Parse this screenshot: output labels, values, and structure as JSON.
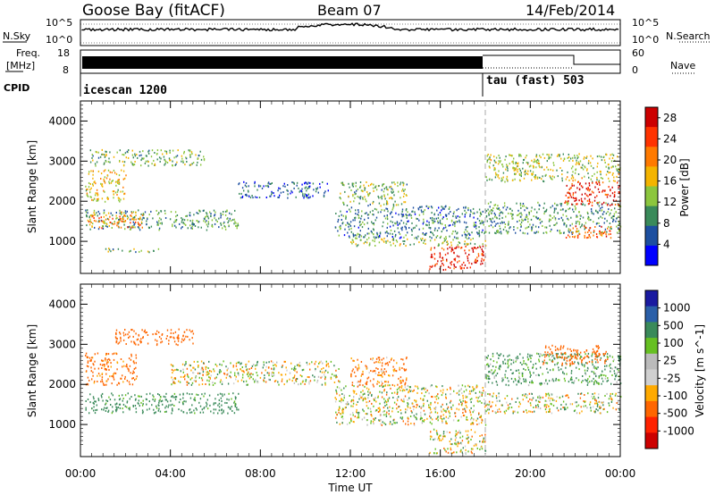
{
  "header": {
    "station": "Goose Bay (fitACF)",
    "beam": "Beam 07",
    "date": "14/Feb/2014"
  },
  "left_labels": {
    "nsky": "N.Sky",
    "freq_line1": "Freq.",
    "freq_line2": "[MHz]",
    "cpid": "CPID"
  },
  "right_labels": {
    "nsearch": "N.Search",
    "nave": "Nave"
  },
  "noise_panel": {
    "ticks_left": [
      "10^5",
      "10^0"
    ],
    "ticks_right": [
      "10^5",
      "10^0"
    ]
  },
  "freq_panel": {
    "ticks_left": [
      "18",
      "8"
    ],
    "ticks_right": [
      "60",
      "0"
    ]
  },
  "cpid_panel": {
    "mode1": "icescan 1200",
    "mode2": "tau (fast) 503"
  },
  "colors": {
    "power_scale": [
      "#0000ff",
      "#1d4fa0",
      "#3a8a5a",
      "#8cc63e",
      "#f4b400",
      "#ff7a00",
      "#ff3300",
      "#cc0000"
    ],
    "velocity_scale": [
      "#1a1aa0",
      "#2a5fa8",
      "#3a8a5a",
      "#66c022",
      "#bbbbbb",
      "#d0d0d0",
      "#ffaa00",
      "#ff6600",
      "#ff2200",
      "#cc0000"
    ],
    "background": "#ffffff"
  },
  "chart_data": [
    {
      "type": "heatmap",
      "panel": "power",
      "ylabel": "Slant Range [km]",
      "yticks": [
        "1000",
        "2000",
        "3000",
        "4000"
      ],
      "ylim": [
        200,
        4500
      ],
      "xticks": [
        "00:00",
        "04:00",
        "08:00",
        "12:00",
        "16:00",
        "20:00",
        "00:00"
      ],
      "xlim_hours": [
        0,
        24
      ],
      "colorbar_label": "Power [dB]",
      "colorbar_ticks": [
        "4",
        "8",
        "12",
        "16",
        "20",
        "24",
        "28"
      ],
      "zlim": [
        0,
        30
      ],
      "regions": [
        {
          "t0": 0.2,
          "t1": 7.0,
          "r0": 1300,
          "r1": 1800,
          "value": 10
        },
        {
          "t0": 0.3,
          "t1": 2.8,
          "r0": 1350,
          "r1": 1750,
          "value": 20
        },
        {
          "t0": 0.2,
          "t1": 2.0,
          "r0": 2000,
          "r1": 2800,
          "value": 16
        },
        {
          "t0": 0.4,
          "t1": 5.5,
          "r0": 2900,
          "r1": 3300,
          "value": 12
        },
        {
          "t0": 1.0,
          "t1": 3.5,
          "r0": 750,
          "r1": 850,
          "value": 12
        },
        {
          "t0": 7.0,
          "t1": 11.0,
          "r0": 2100,
          "r1": 2500,
          "value": 6
        },
        {
          "t0": 11.3,
          "t1": 18.0,
          "r0": 1100,
          "r1": 1900,
          "value": 8
        },
        {
          "t0": 11.5,
          "t1": 14.5,
          "r0": 1900,
          "r1": 2500,
          "value": 12
        },
        {
          "t0": 12.0,
          "t1": 18.0,
          "r0": 900,
          "r1": 1100,
          "value": 14
        },
        {
          "t0": 15.5,
          "t1": 18.0,
          "r0": 300,
          "r1": 900,
          "value": 26
        },
        {
          "t0": 18.0,
          "t1": 24.0,
          "r0": 1200,
          "r1": 2000,
          "value": 10
        },
        {
          "t0": 18.0,
          "t1": 24.0,
          "r0": 2500,
          "r1": 3200,
          "value": 14
        },
        {
          "t0": 21.5,
          "t1": 24.0,
          "r0": 1900,
          "r1": 2500,
          "value": 26
        },
        {
          "t0": 21.5,
          "t1": 24.0,
          "r0": 1100,
          "r1": 1400,
          "value": 22
        }
      ]
    },
    {
      "type": "heatmap",
      "panel": "velocity",
      "ylabel": "Slant Range [km]",
      "yticks": [
        "1000",
        "2000",
        "3000",
        "4000"
      ],
      "ylim": [
        200,
        4500
      ],
      "xticks": [
        "00:00",
        "04:00",
        "08:00",
        "12:00",
        "16:00",
        "20:00",
        "00:00"
      ],
      "xlabel": "Time UT",
      "xlim_hours": [
        0,
        24
      ],
      "colorbar_label": "Velocity [m s^-1]",
      "colorbar_ticks": [
        "1000",
        "500",
        "100",
        "25",
        "-25",
        "-100",
        "-500",
        "-1000"
      ],
      "regions": [
        {
          "t0": 0.2,
          "t1": 7.0,
          "r0": 1300,
          "r1": 1800,
          "value": 200
        },
        {
          "t0": 0.2,
          "t1": 2.5,
          "r0": 2000,
          "r1": 2800,
          "value": -200
        },
        {
          "t0": 1.5,
          "t1": 5.0,
          "r0": 3000,
          "r1": 3400,
          "value": -300
        },
        {
          "t0": 4.0,
          "t1": 11.5,
          "r0": 2000,
          "r1": 2600,
          "value": 0
        },
        {
          "t0": 11.3,
          "t1": 18.0,
          "r0": 1000,
          "r1": 2000,
          "value": 0
        },
        {
          "t0": 12.0,
          "t1": 14.5,
          "r0": 2000,
          "r1": 2700,
          "value": -150
        },
        {
          "t0": 15.5,
          "t1": 18.0,
          "r0": 300,
          "r1": 900,
          "value": 0
        },
        {
          "t0": 18.0,
          "t1": 24.0,
          "r0": 1300,
          "r1": 1800,
          "value": 0
        },
        {
          "t0": 18.0,
          "t1": 24.0,
          "r0": 2000,
          "r1": 2800,
          "value": 150
        },
        {
          "t0": 20.5,
          "t1": 23.5,
          "r0": 2500,
          "r1": 3000,
          "value": -300
        }
      ]
    }
  ]
}
